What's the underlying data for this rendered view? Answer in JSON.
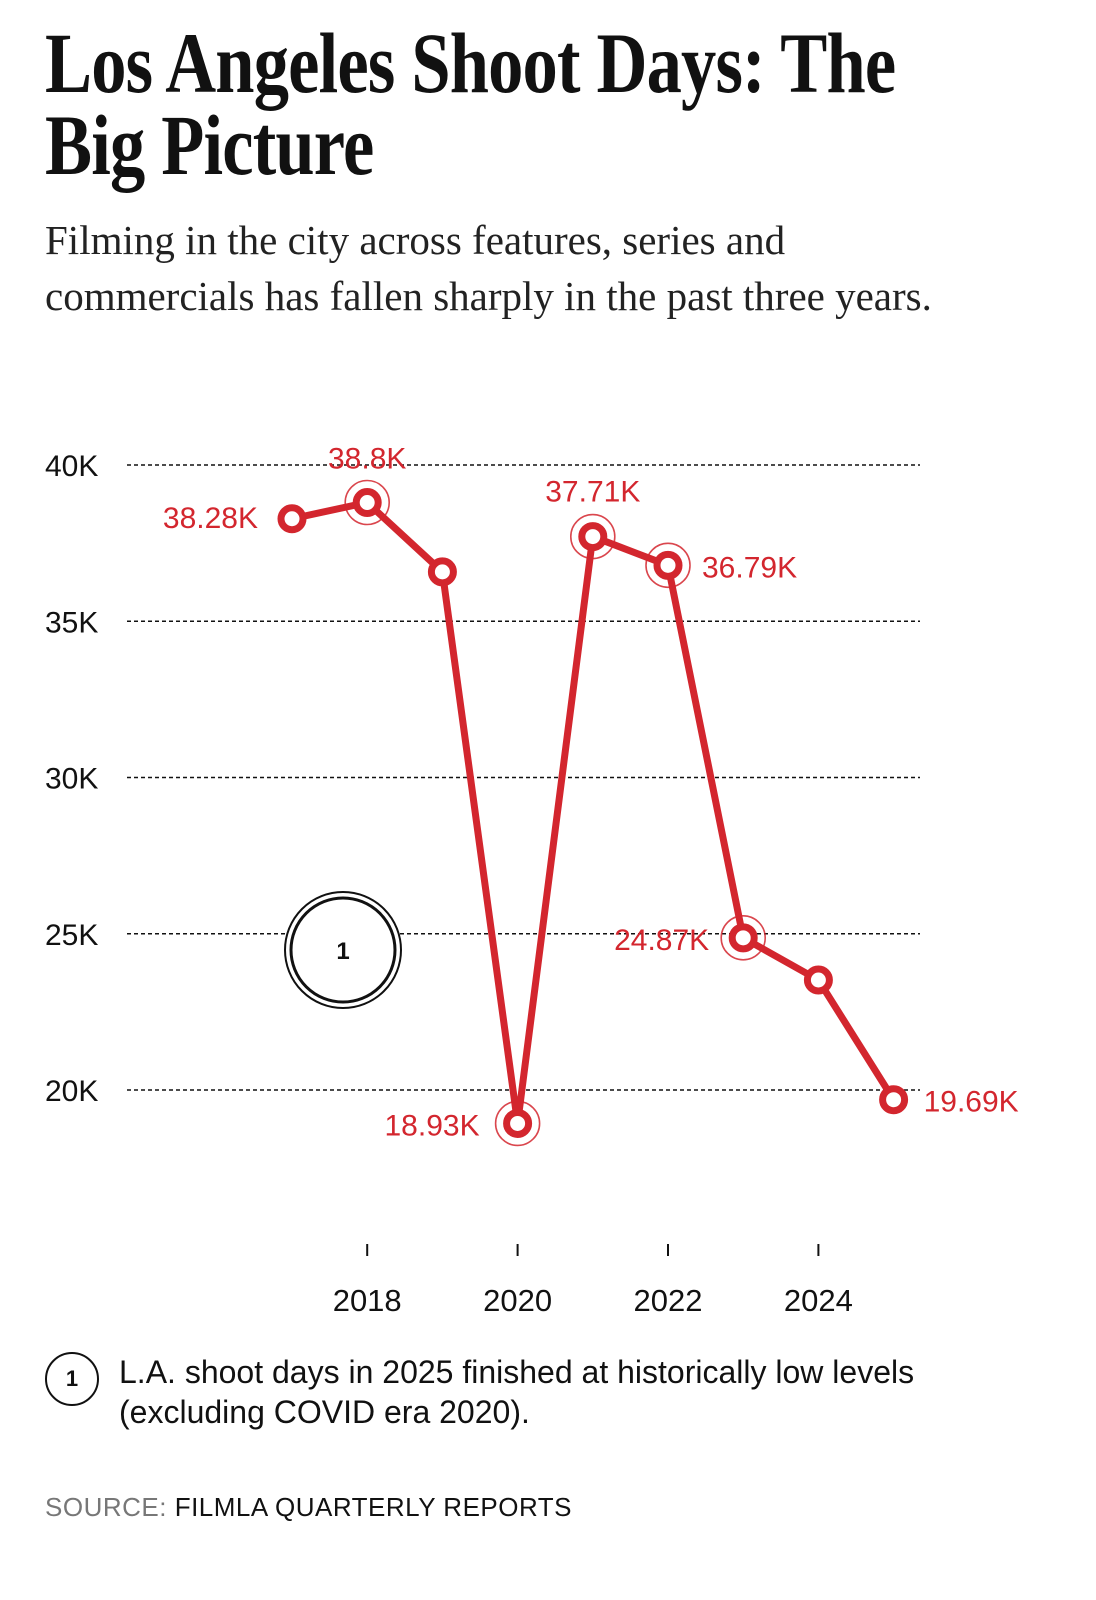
{
  "title": "Los Angeles Shoot Days: The Big Picture",
  "subtitle": "Filming in the city across features, series and commercials has fallen sharply in the past three years.",
  "chart_data": {
    "type": "line",
    "title": "Los Angeles Shoot Days: The Big Picture",
    "xlabel": "",
    "ylabel": "",
    "x": [
      2017,
      2018,
      2019,
      2020,
      2021,
      2022,
      2023,
      2024,
      2025
    ],
    "series": [
      {
        "name": "LA shoot days",
        "color": "#d3262e",
        "values": [
          38.28,
          38.8,
          36.58,
          18.93,
          37.71,
          36.79,
          24.87,
          23.52,
          19.69
        ],
        "labels": [
          "38.28K",
          "38.8K",
          "",
          "18.93K",
          "37.71K",
          "36.79K",
          "24.87K",
          "",
          "19.69K"
        ],
        "highlighted": [
          false,
          true,
          false,
          true,
          true,
          true,
          true,
          false,
          false
        ]
      }
    ],
    "ylim": [
      18,
      40
    ],
    "yticks": [
      20,
      25,
      30,
      35,
      40
    ],
    "ytick_labels": [
      "20K",
      "25K",
      "30K",
      "35K",
      "40K"
    ],
    "xticks": [
      2018,
      2020,
      2022,
      2024
    ],
    "xtick_labels": [
      "2018",
      "2020",
      "2022",
      "2024"
    ],
    "grid": "horizontal dashed",
    "annotations": [
      {
        "marker": "1",
        "text": "L.A. shoot days in 2025 finished at historically low levels (excluding COVID era 2020)."
      }
    ]
  },
  "footnote": {
    "marker": "1",
    "text": "L.A. shoot days in 2025 finished at historically low levels (excluding COVID era 2020)."
  },
  "source": {
    "label": "SOURCE:",
    "value": "FILMLA QUARTERLY REPORTS"
  }
}
